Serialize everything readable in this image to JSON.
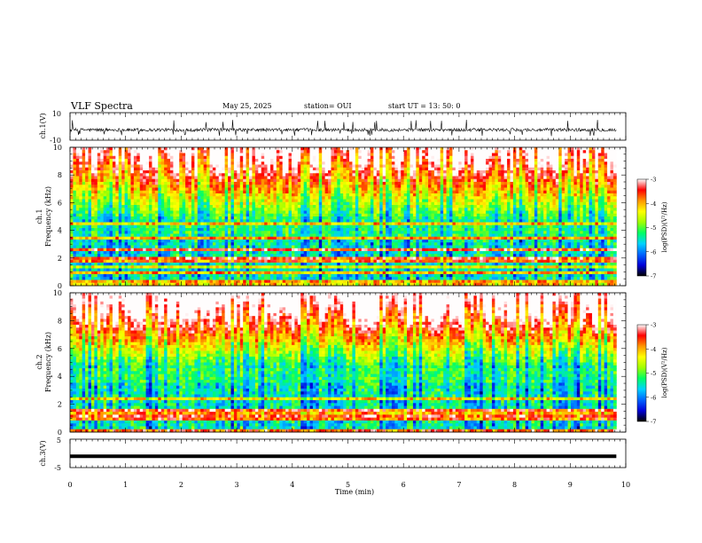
{
  "header": {
    "title": "VLF Spectra",
    "date": "May 25, 2025",
    "station": "station= OUI",
    "start": "start UT =  13: 50: 0"
  },
  "colorbar": {
    "label": "log(PSD)(V²/Hz)",
    "ticks": [
      "-3",
      "-4",
      "-5",
      "-6",
      "-7"
    ],
    "range": [
      -7,
      -3
    ],
    "colors": [
      "#000000",
      "#0000d8",
      "#0064ff",
      "#00d2ff",
      "#00ff64",
      "#a0ff00",
      "#ffff00",
      "#ff9600",
      "#ff0000",
      "#ffffff"
    ]
  },
  "chart_data": [
    {
      "type": "line",
      "panel": "ch1-waveform",
      "ylabel": "ch.1(V)",
      "xlim": [
        0,
        9.83
      ],
      "ylim": [
        -10,
        10
      ],
      "ytick_labels": [
        "10",
        "-10"
      ],
      "baseline": -2.5,
      "noise_amplitude": 1.2,
      "spikes_to": [
        -7,
        3
      ]
    },
    {
      "type": "heatmap",
      "panel": "ch1-spectrogram",
      "ylabel_1": "ch.1",
      "ylabel_2": "Frequency (kHz)",
      "xlim": [
        0,
        9.83
      ],
      "ylim": [
        0,
        10
      ],
      "ytick_labels": [
        "0",
        "2",
        "4",
        "6",
        "8",
        "10"
      ],
      "z_range": [
        -7,
        -3
      ]
    },
    {
      "type": "heatmap",
      "panel": "ch2-spectrogram",
      "ylabel_1": "ch.2",
      "ylabel_2": "Frequency (kHz)",
      "xlim": [
        0,
        9.83
      ],
      "ylim": [
        0,
        10
      ],
      "ytick_labels": [
        "0",
        "2",
        "4",
        "6",
        "8",
        "10"
      ],
      "z_range": [
        -7,
        -3
      ]
    },
    {
      "type": "line",
      "panel": "ch3-waveform",
      "ylabel": "ch.3(V)",
      "xlim": [
        0,
        9.83
      ],
      "ylim": [
        -5,
        5
      ],
      "ytick_labels": [
        "5",
        "-5"
      ],
      "value": -1
    }
  ],
  "xaxis": {
    "label": "Time (min)",
    "range": [
      0,
      10
    ],
    "tick_labels": [
      "0",
      "1",
      "2",
      "3",
      "4",
      "5",
      "6",
      "7",
      "8",
      "9",
      "10"
    ]
  }
}
